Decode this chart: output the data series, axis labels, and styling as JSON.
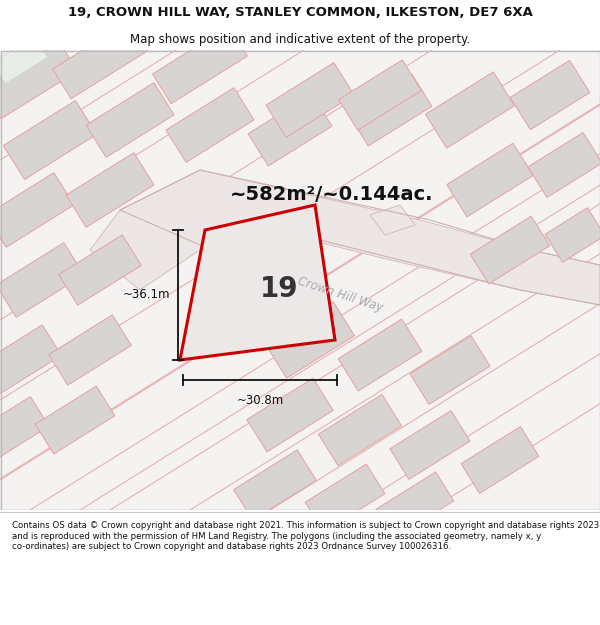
{
  "title_line1": "19, CROWN HILL WAY, STANLEY COMMON, ILKESTON, DE7 6XA",
  "title_line2": "Map shows position and indicative extent of the property.",
  "area_text": "~582m²/~0.144ac.",
  "property_number": "19",
  "dim_horizontal": "~30.8m",
  "dim_vertical": "~36.1m",
  "road_label": "Crown Hill Way",
  "footer_text": "Contains OS data © Crown copyright and database right 2021. This information is subject to Crown copyright and database rights 2023 and is reproduced with the permission of HM Land Registry. The polygons (including the associated geometry, namely x, y co-ordinates) are subject to Crown copyright and database rights 2023 Ordnance Survey 100026316.",
  "map_bg": "#f5f2f2",
  "building_fill": "#d8d4d4",
  "building_edge": "#e8a0a0",
  "road_fill": "#e8e2e2",
  "road_edge": "#d0b8b8",
  "property_fill": "#ede8e8",
  "property_edge": "#cc0000",
  "white_bg": "#ffffff",
  "text_dark": "#333333",
  "dim_color": "#111111",
  "road_text_color": "#aaaaaa"
}
